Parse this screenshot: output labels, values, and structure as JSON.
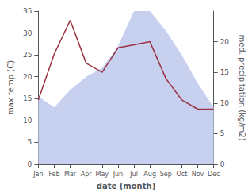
{
  "chart_data": {
    "type": "line",
    "categories": [
      "Jan",
      "Feb",
      "Mar",
      "Apr",
      "May",
      "Jun",
      "Jul",
      "Aug",
      "Sep",
      "Oct",
      "Nov",
      "Dec"
    ],
    "xlabel": "date (month)",
    "ylabel": "max temp (C)",
    "y2label": "med. precipitation (kg/m2)",
    "series": [
      {
        "type": "area",
        "color": "#c8d0f0",
        "values": [
          15.5,
          13.0,
          17.0,
          20.0,
          22.0,
          27.0,
          35.0,
          35.0,
          30.5,
          25.0,
          18.5,
          13.0
        ]
      },
      {
        "type": "line",
        "color": "#993344",
        "axis": "y2",
        "values": [
          10.5,
          18.0,
          23.5,
          16.5,
          15.0,
          19.0,
          19.5,
          20.0,
          14.0,
          10.5,
          9.0,
          9.0
        ]
      }
    ],
    "ylim": [
      0,
      35
    ],
    "yticks": [
      0,
      5,
      10,
      15,
      20,
      25,
      30,
      35
    ],
    "y2lim": [
      0,
      25
    ],
    "y2ticks": [
      0,
      5,
      10,
      15,
      20
    ],
    "grid": false
  }
}
